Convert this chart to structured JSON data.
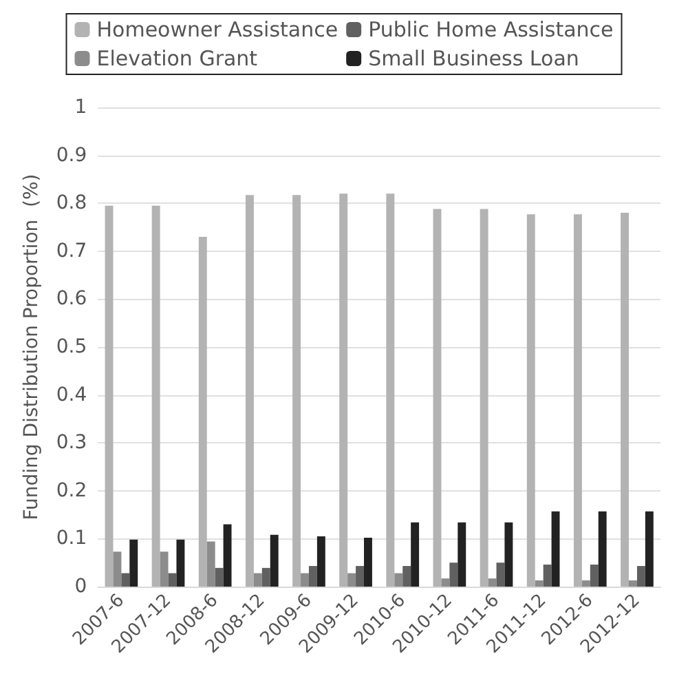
{
  "chart_data": {
    "type": "bar",
    "ylabel": "Funding Distribution Proportion  (%)",
    "categories": [
      "2007-6",
      "2007-12",
      "2008-6",
      "2008-12",
      "2009-6",
      "2009-12",
      "2010-6",
      "2010-12",
      "2011-6",
      "2011-12",
      "2012-6",
      "2012-12"
    ],
    "series": [
      {
        "name": "Homeowner Assistance",
        "color": "#b3b3b3",
        "values": [
          0.795,
          0.795,
          0.73,
          0.817,
          0.817,
          0.82,
          0.82,
          0.788,
          0.788,
          0.777,
          0.777,
          0.78
        ]
      },
      {
        "name": "Elevation Grant",
        "color": "#8c8c8c",
        "values": [
          0.073,
          0.073,
          0.094,
          0.028,
          0.028,
          0.028,
          0.028,
          0.017,
          0.017,
          0.013,
          0.013,
          0.013
        ]
      },
      {
        "name": "Public Home Assistance",
        "color": "#606060",
        "values": [
          0.028,
          0.028,
          0.039,
          0.039,
          0.043,
          0.043,
          0.043,
          0.05,
          0.05,
          0.046,
          0.046,
          0.043
        ]
      },
      {
        "name": "Small Business Loan",
        "color": "#222222",
        "values": [
          0.098,
          0.098,
          0.13,
          0.108,
          0.105,
          0.102,
          0.134,
          0.134,
          0.134,
          0.157,
          0.157,
          0.157
        ]
      }
    ],
    "ylim": [
      0,
      1
    ],
    "yticks": [
      0,
      0.1,
      0.2,
      0.3,
      0.4,
      0.5,
      0.6,
      0.7,
      0.8,
      0.9,
      1
    ],
    "grid": "y",
    "legend": "top"
  }
}
